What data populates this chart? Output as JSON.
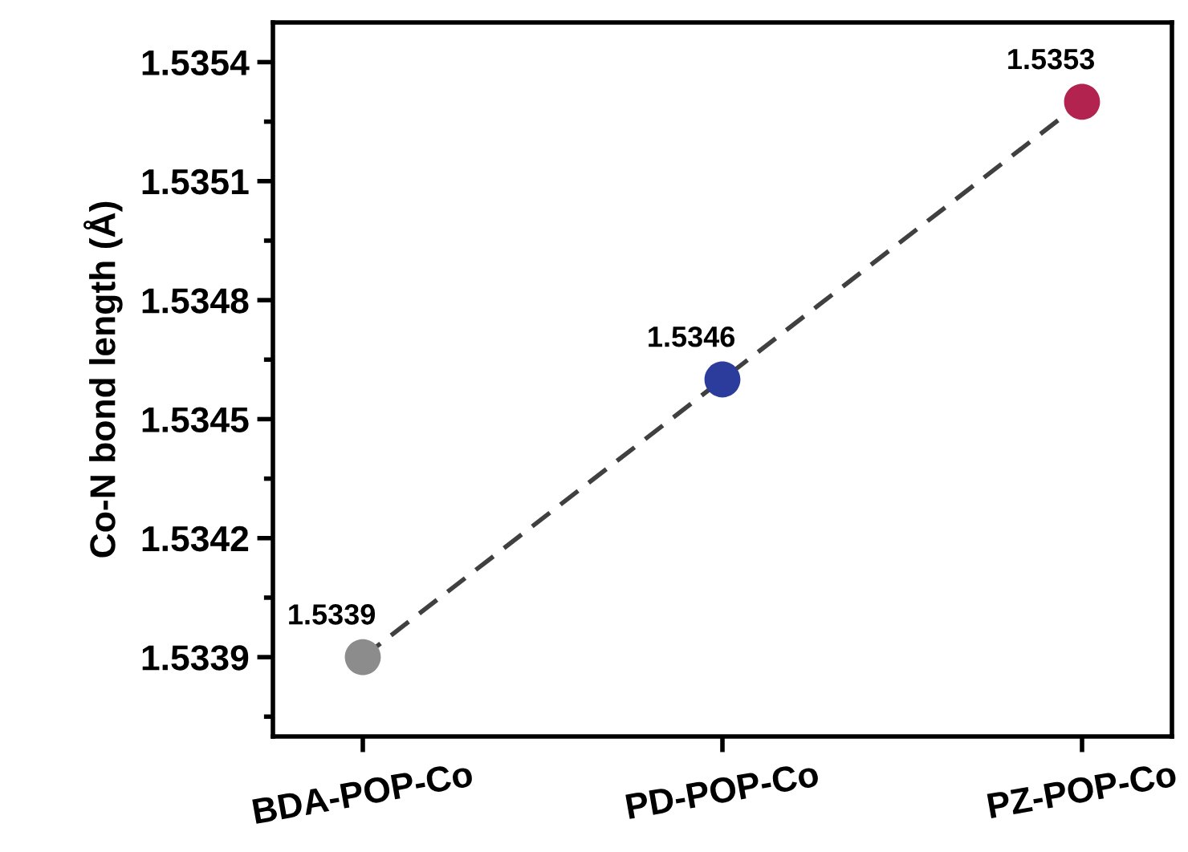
{
  "chart_data": {
    "type": "line",
    "ylabel": "Co-N bond length (Å)",
    "categories": [
      "BDA-POP-Co",
      "PD-POP-Co",
      "PZ-POP-Co"
    ],
    "series": [
      {
        "color": "#404040",
        "colors": [
          "#8c8c8c",
          "#2b3c9c",
          "#b3234f"
        ],
        "values": [
          1.5339,
          1.5346,
          1.5353
        ]
      }
    ],
    "ylim": [
      1.5337,
      1.5355
    ],
    "yticks": [
      1.5339,
      1.5342,
      1.5345,
      1.5348,
      1.5351,
      1.5354
    ],
    "marker": "circle",
    "line_style": "dashed",
    "data_labels": true,
    "grid": false,
    "legend": false
  }
}
